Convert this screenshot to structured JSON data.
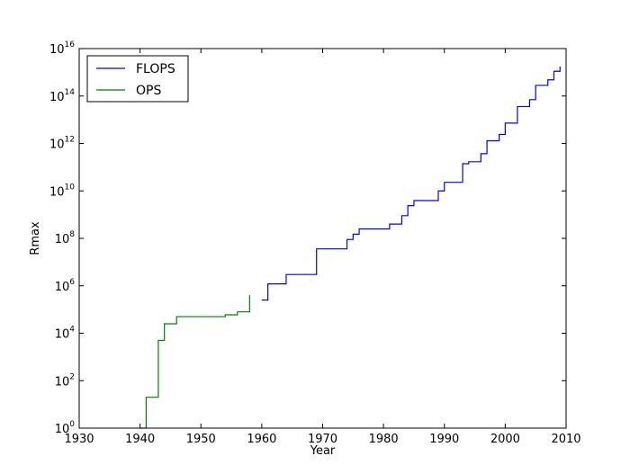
{
  "chart_data": {
    "type": "line",
    "step": "post",
    "title": "",
    "xlabel": "Year",
    "ylabel": "Rmax",
    "xlim": [
      1930,
      2010
    ],
    "ylim": [
      1,
      1e+16
    ],
    "yscale": "log",
    "grid": false,
    "legend_position": "upper-left",
    "x_ticks": [
      1930,
      1940,
      1950,
      1960,
      1970,
      1980,
      1990,
      2000,
      2010
    ],
    "y_ticks": [
      {
        "value": 1,
        "base": "10",
        "exp": "0"
      },
      {
        "value": 100,
        "base": "10",
        "exp": "2"
      },
      {
        "value": 10000,
        "base": "10",
        "exp": "4"
      },
      {
        "value": 1000000,
        "base": "10",
        "exp": "6"
      },
      {
        "value": 100000000,
        "base": "10",
        "exp": "8"
      },
      {
        "value": 10000000000,
        "base": "10",
        "exp": "10"
      },
      {
        "value": 1000000000000,
        "base": "10",
        "exp": "12"
      },
      {
        "value": 100000000000000,
        "base": "10",
        "exp": "14"
      },
      {
        "value": 10000000000000000,
        "base": "10",
        "exp": "16"
      }
    ],
    "series": [
      {
        "name": "FLOPS",
        "color": "#0000ff",
        "points": [
          [
            1960,
            250000.0
          ],
          [
            1961,
            1200000.0
          ],
          [
            1964,
            3000000.0
          ],
          [
            1969,
            36000000.0
          ],
          [
            1974,
            90000000.0
          ],
          [
            1975,
            150000000.0
          ],
          [
            1976,
            250000000.0
          ],
          [
            1981,
            400000000.0
          ],
          [
            1983,
            900000000.0
          ],
          [
            1984,
            2400000000.0
          ],
          [
            1985,
            3900000000.0
          ],
          [
            1989,
            10000000000.0
          ],
          [
            1990,
            23000000000.0
          ],
          [
            1993,
            140000000000.0
          ],
          [
            1994,
            170000000000.0
          ],
          [
            1996,
            370000000000.0
          ],
          [
            1997,
            1300000000000.0
          ],
          [
            1999,
            2400000000000.0
          ],
          [
            2000,
            7200000000000.0
          ],
          [
            2002,
            36000000000000.0
          ],
          [
            2004,
            70000000000000.0
          ],
          [
            2005,
            280000000000000.0
          ],
          [
            2007,
            480000000000000.0
          ],
          [
            2008,
            1100000000000000.0
          ],
          [
            2009,
            1750000000000000.0
          ]
        ]
      },
      {
        "name": "OPS",
        "color": "#008000",
        "points": [
          [
            1940,
            1
          ],
          [
            1941,
            20
          ],
          [
            1943,
            5000
          ],
          [
            1944,
            25000.0
          ],
          [
            1946,
            50000.0
          ],
          [
            1954,
            60000.0
          ],
          [
            1956,
            80000.0
          ],
          [
            1958,
            400000.0
          ]
        ]
      }
    ]
  }
}
